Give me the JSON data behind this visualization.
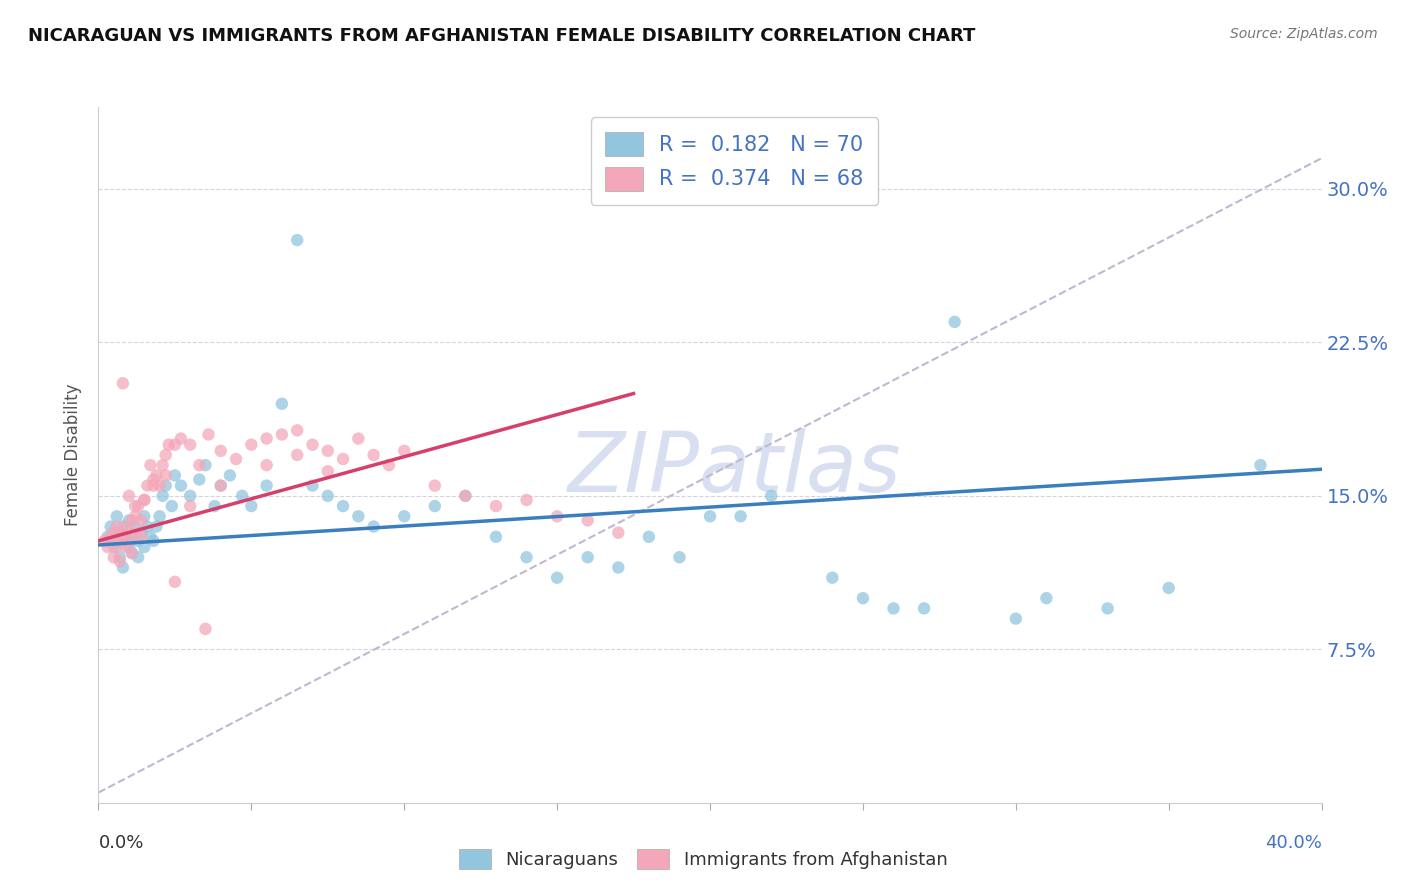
{
  "title": "NICARAGUAN VS IMMIGRANTS FROM AFGHANISTAN FEMALE DISABILITY CORRELATION CHART",
  "source": "Source: ZipAtlas.com",
  "ylabel": "Female Disability",
  "ytick_vals": [
    0.075,
    0.15,
    0.225,
    0.3
  ],
  "ytick_labels": [
    "7.5%",
    "15.0%",
    "22.5%",
    "30.0%"
  ],
  "xlim": [
    0.0,
    0.4
  ],
  "ylim": [
    0.0,
    0.34
  ],
  "blue_R": "0.182",
  "blue_N": "70",
  "pink_R": "0.374",
  "pink_N": "68",
  "blue_color": "#92c5de",
  "pink_color": "#f4a7b9",
  "blue_line_color": "#3a7ebf",
  "pink_line_color": "#d63f6a",
  "dashed_line_color": "#c0b8d0",
  "watermark_color": "#d8dff0",
  "legend_label_blue": "Nicaraguans",
  "legend_label_pink": "Immigrants from Afghanistan",
  "blue_scatter_x": [
    0.003,
    0.004,
    0.005,
    0.006,
    0.006,
    0.007,
    0.007,
    0.008,
    0.008,
    0.009,
    0.009,
    0.01,
    0.01,
    0.011,
    0.011,
    0.012,
    0.013,
    0.013,
    0.014,
    0.015,
    0.015,
    0.016,
    0.017,
    0.018,
    0.019,
    0.02,
    0.021,
    0.022,
    0.024,
    0.025,
    0.027,
    0.03,
    0.033,
    0.035,
    0.038,
    0.04,
    0.043,
    0.047,
    0.05,
    0.055,
    0.06,
    0.065,
    0.07,
    0.075,
    0.08,
    0.085,
    0.09,
    0.1,
    0.11,
    0.12,
    0.13,
    0.14,
    0.15,
    0.16,
    0.17,
    0.18,
    0.19,
    0.2,
    0.21,
    0.22,
    0.24,
    0.25,
    0.26,
    0.27,
    0.28,
    0.3,
    0.31,
    0.33,
    0.35,
    0.38
  ],
  "blue_scatter_y": [
    0.13,
    0.135,
    0.125,
    0.14,
    0.128,
    0.132,
    0.12,
    0.135,
    0.115,
    0.13,
    0.128,
    0.125,
    0.138,
    0.122,
    0.13,
    0.135,
    0.128,
    0.12,
    0.132,
    0.14,
    0.125,
    0.135,
    0.13,
    0.128,
    0.135,
    0.14,
    0.15,
    0.155,
    0.145,
    0.16,
    0.155,
    0.15,
    0.158,
    0.165,
    0.145,
    0.155,
    0.16,
    0.15,
    0.145,
    0.155,
    0.195,
    0.275,
    0.155,
    0.15,
    0.145,
    0.14,
    0.135,
    0.14,
    0.145,
    0.15,
    0.13,
    0.12,
    0.11,
    0.12,
    0.115,
    0.13,
    0.12,
    0.14,
    0.14,
    0.15,
    0.11,
    0.1,
    0.095,
    0.095,
    0.235,
    0.09,
    0.1,
    0.095,
    0.105,
    0.165
  ],
  "pink_scatter_x": [
    0.002,
    0.003,
    0.004,
    0.005,
    0.005,
    0.006,
    0.006,
    0.007,
    0.007,
    0.008,
    0.008,
    0.009,
    0.009,
    0.01,
    0.011,
    0.011,
    0.012,
    0.012,
    0.013,
    0.014,
    0.014,
    0.015,
    0.016,
    0.017,
    0.018,
    0.019,
    0.02,
    0.021,
    0.022,
    0.023,
    0.025,
    0.027,
    0.03,
    0.033,
    0.036,
    0.04,
    0.045,
    0.05,
    0.055,
    0.06,
    0.065,
    0.07,
    0.075,
    0.08,
    0.085,
    0.09,
    0.095,
    0.1,
    0.11,
    0.12,
    0.13,
    0.14,
    0.15,
    0.16,
    0.17,
    0.03,
    0.04,
    0.055,
    0.065,
    0.075,
    0.008,
    0.01,
    0.012,
    0.015,
    0.018,
    0.022,
    0.025,
    0.035
  ],
  "pink_scatter_y": [
    0.128,
    0.125,
    0.13,
    0.132,
    0.12,
    0.135,
    0.125,
    0.13,
    0.118,
    0.132,
    0.128,
    0.125,
    0.135,
    0.128,
    0.138,
    0.122,
    0.14,
    0.132,
    0.145,
    0.138,
    0.13,
    0.148,
    0.155,
    0.165,
    0.158,
    0.16,
    0.155,
    0.165,
    0.17,
    0.175,
    0.175,
    0.178,
    0.175,
    0.165,
    0.18,
    0.172,
    0.168,
    0.175,
    0.178,
    0.18,
    0.182,
    0.175,
    0.172,
    0.168,
    0.178,
    0.17,
    0.165,
    0.172,
    0.155,
    0.15,
    0.145,
    0.148,
    0.14,
    0.138,
    0.132,
    0.145,
    0.155,
    0.165,
    0.17,
    0.162,
    0.205,
    0.15,
    0.145,
    0.148,
    0.155,
    0.16,
    0.108,
    0.085
  ],
  "blue_line_x0": 0.0,
  "blue_line_x1": 0.4,
  "blue_line_y0": 0.126,
  "blue_line_y1": 0.163,
  "pink_line_x0": 0.0,
  "pink_line_x1": 0.175,
  "pink_line_y0": 0.128,
  "pink_line_y1": 0.2,
  "dash_line_x0": 0.0,
  "dash_line_x1": 0.4,
  "dash_line_y0": 0.005,
  "dash_line_y1": 0.315
}
